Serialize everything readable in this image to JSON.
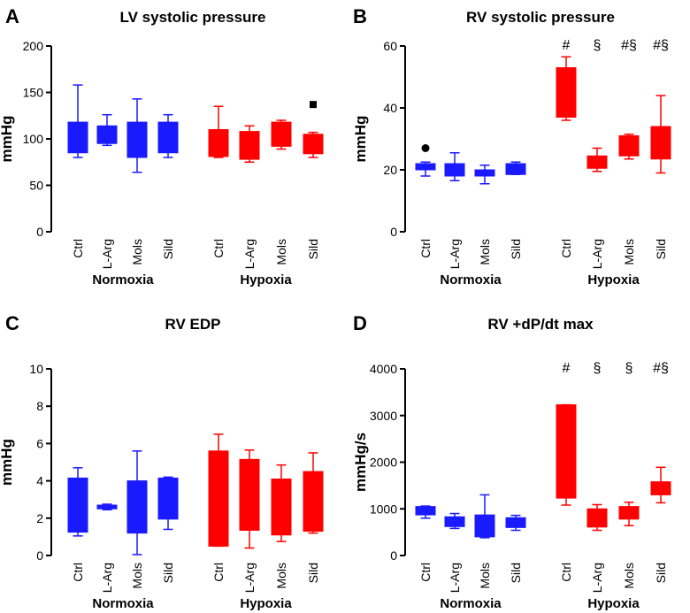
{
  "colors": {
    "normoxia": "#1a1aff",
    "hypoxia": "#ff0000",
    "axis": "#000000"
  },
  "chart_data": [
    {
      "panel_letter": "A",
      "type": "box",
      "title": "LV systolic pressure",
      "ylabel": "mmHg",
      "ylim": [
        0,
        200
      ],
      "yticks": [
        0,
        50,
        100,
        150,
        200
      ],
      "groups": [
        "Normoxia",
        "Hypoxia"
      ],
      "categories": [
        "Ctrl",
        "L-Arg",
        "Mols",
        "Sild"
      ],
      "series": [
        {
          "name": "Normoxia",
          "boxes": [
            {
              "category": "Ctrl",
              "min": 80,
              "q1": 85,
              "median": 98,
              "q3": 118,
              "max": 158
            },
            {
              "category": "L-Arg",
              "min": 93,
              "q1": 95,
              "median": 100,
              "q3": 114,
              "max": 126
            },
            {
              "category": "Mols",
              "min": 64,
              "q1": 80,
              "median": 97,
              "q3": 118,
              "max": 143
            },
            {
              "category": "Sild",
              "min": 80,
              "q1": 85,
              "median": 100,
              "q3": 118,
              "max": 126
            }
          ]
        },
        {
          "name": "Hypoxia",
          "boxes": [
            {
              "category": "Ctrl",
              "min": 80,
              "q1": 81,
              "median": 98,
              "q3": 110,
              "max": 135
            },
            {
              "category": "L-Arg",
              "min": 75,
              "q1": 78,
              "median": 98,
              "q3": 108,
              "max": 114
            },
            {
              "category": "Mols",
              "min": 89,
              "q1": 92,
              "median": 106,
              "q3": 118,
              "max": 120
            },
            {
              "category": "Sild",
              "min": 80,
              "q1": 84,
              "median": 97,
              "q3": 105,
              "max": 107,
              "outlier": {
                "value": 137,
                "marker": "square"
              }
            }
          ]
        }
      ],
      "annotations": []
    },
    {
      "panel_letter": "B",
      "type": "box",
      "title": "RV systolic pressure",
      "ylabel": "mmHg",
      "ylim": [
        0,
        60
      ],
      "yticks": [
        0,
        20,
        40,
        60
      ],
      "groups": [
        "Normoxia",
        "Hypoxia"
      ],
      "categories": [
        "Ctrl",
        "L-Arg",
        "Mols",
        "Sild"
      ],
      "series": [
        {
          "name": "Normoxia",
          "boxes": [
            {
              "category": "Ctrl",
              "min": 18,
              "q1": 20,
              "median": 21,
              "q3": 22,
              "max": 22.5,
              "outlier": {
                "value": 27,
                "marker": "circle"
              }
            },
            {
              "category": "L-Arg",
              "min": 16.5,
              "q1": 18,
              "median": 19.5,
              "q3": 22,
              "max": 25.5
            },
            {
              "category": "Mols",
              "min": 15.5,
              "q1": 18,
              "median": 19,
              "q3": 20,
              "max": 21.5
            },
            {
              "category": "Sild",
              "min": 18.5,
              "q1": 18.5,
              "median": 20,
              "q3": 22,
              "max": 22.5
            }
          ]
        },
        {
          "name": "Hypoxia",
          "boxes": [
            {
              "category": "Ctrl",
              "min": 36,
              "q1": 37,
              "median": 44,
              "q3": 53,
              "max": 56.5
            },
            {
              "category": "L-Arg",
              "min": 19.5,
              "q1": 20.5,
              "median": 22,
              "q3": 24.5,
              "max": 27
            },
            {
              "category": "Mols",
              "min": 23.5,
              "q1": 24.5,
              "median": 27,
              "q3": 31,
              "max": 31.5
            },
            {
              "category": "Sild",
              "min": 19,
              "q1": 23.5,
              "median": 28,
              "q3": 34,
              "max": 44
            }
          ]
        }
      ],
      "annotations": [
        "#",
        "§",
        "#§",
        "#§"
      ]
    },
    {
      "panel_letter": "C",
      "type": "box",
      "title": "RV EDP",
      "ylabel": "mmHg",
      "ylim": [
        0,
        10
      ],
      "yticks": [
        0,
        2,
        4,
        6,
        8,
        10
      ],
      "groups": [
        "Normoxia",
        "Hypoxia"
      ],
      "categories": [
        "Ctrl",
        "L-Arg",
        "Mols",
        "Sild"
      ],
      "series": [
        {
          "name": "Normoxia",
          "boxes": [
            {
              "category": "Ctrl",
              "min": 1.05,
              "q1": 1.25,
              "median": 2.8,
              "q3": 4.15,
              "max": 4.7
            },
            {
              "category": "L-Arg",
              "min": 2.45,
              "q1": 2.5,
              "median": 2.6,
              "q3": 2.7,
              "max": 2.75
            },
            {
              "category": "Mols",
              "min": 0.05,
              "q1": 1.2,
              "median": 2.7,
              "q3": 4.0,
              "max": 5.6
            },
            {
              "category": "Sild",
              "min": 1.4,
              "q1": 1.95,
              "median": 3.4,
              "q3": 4.15,
              "max": 4.2
            }
          ]
        },
        {
          "name": "Hypoxia",
          "boxes": [
            {
              "category": "Ctrl",
              "min": 0.5,
              "q1": 0.5,
              "median": 2.5,
              "q3": 5.6,
              "max": 6.5
            },
            {
              "category": "L-Arg",
              "min": 0.4,
              "q1": 1.35,
              "median": 3.5,
              "q3": 5.15,
              "max": 5.65
            },
            {
              "category": "Mols",
              "min": 0.75,
              "q1": 1.1,
              "median": 2.5,
              "q3": 4.1,
              "max": 4.85
            },
            {
              "category": "Sild",
              "min": 1.2,
              "q1": 1.3,
              "median": 2.5,
              "q3": 4.5,
              "max": 5.5
            }
          ]
        }
      ],
      "annotations": []
    },
    {
      "panel_letter": "D",
      "type": "box",
      "title": "RV +dP/dt max",
      "ylabel": "mmHg/s",
      "ylim": [
        0,
        4000
      ],
      "yticks": [
        0,
        1000,
        2000,
        3000,
        4000
      ],
      "groups": [
        "Normoxia",
        "Hypoxia"
      ],
      "categories": [
        "Ctrl",
        "L-Arg",
        "Mols",
        "Sild"
      ],
      "series": [
        {
          "name": "Normoxia",
          "boxes": [
            {
              "category": "Ctrl",
              "min": 800,
              "q1": 870,
              "median": 950,
              "q3": 1050,
              "max": 1060
            },
            {
              "category": "L-Arg",
              "min": 580,
              "q1": 620,
              "median": 720,
              "q3": 830,
              "max": 900
            },
            {
              "category": "Mols",
              "min": 380,
              "q1": 400,
              "median": 580,
              "q3": 870,
              "max": 1300
            },
            {
              "category": "Sild",
              "min": 540,
              "q1": 600,
              "median": 700,
              "q3": 810,
              "max": 860
            }
          ]
        },
        {
          "name": "Hypoxia",
          "boxes": [
            {
              "category": "Ctrl",
              "min": 1080,
              "q1": 1230,
              "median": 1800,
              "q3": 3230,
              "max": 3230
            },
            {
              "category": "L-Arg",
              "min": 540,
              "q1": 610,
              "median": 800,
              "q3": 1000,
              "max": 1090
            },
            {
              "category": "Mols",
              "min": 640,
              "q1": 780,
              "median": 900,
              "q3": 1050,
              "max": 1140
            },
            {
              "category": "Sild",
              "min": 1130,
              "q1": 1300,
              "median": 1500,
              "q3": 1580,
              "max": 1890
            }
          ]
        }
      ],
      "annotations": [
        "#",
        "§",
        "§",
        "#§"
      ]
    }
  ]
}
